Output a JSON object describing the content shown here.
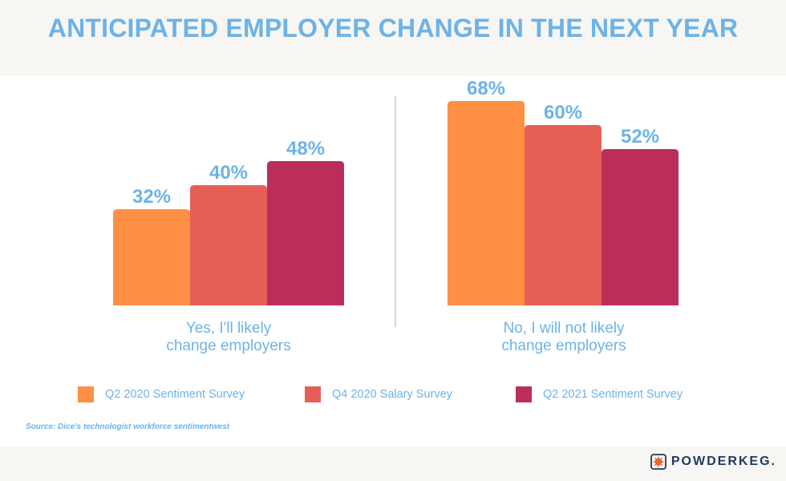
{
  "title": "ANTICIPATED EMPLOYER CHANGE IN THE NEXT YEAR",
  "source": "Source: Dice's technologist workforce sentimentwest",
  "brand": "POWDERKEG.",
  "chart_data": {
    "type": "bar",
    "categories": [
      "Yes, I'll likely change employers",
      "No, I will not likely change employers"
    ],
    "category_lines": [
      [
        "Yes, I'll likely",
        "change employers"
      ],
      [
        "No, I will not likely",
        "change employers"
      ]
    ],
    "series": [
      {
        "name": "Q2 2020 Sentiment Survey",
        "values": [
          32,
          68
        ],
        "labels": [
          "32%",
          "68%"
        ],
        "color": "#ff8f45"
      },
      {
        "name": "Q4 2020 Salary Survey",
        "values": [
          40,
          60
        ],
        "labels": [
          "40%",
          "60%"
        ],
        "color": "#e55f57"
      },
      {
        "name": "Q2 2021 Sentiment Survey",
        "values": [
          48,
          52
        ],
        "labels": [
          "48%",
          "52%"
        ],
        "color": "#bb2e5a"
      }
    ],
    "ylim": [
      0,
      100
    ],
    "grid": false,
    "legend_position": "bottom",
    "accent_color": "#6cb3e8"
  }
}
